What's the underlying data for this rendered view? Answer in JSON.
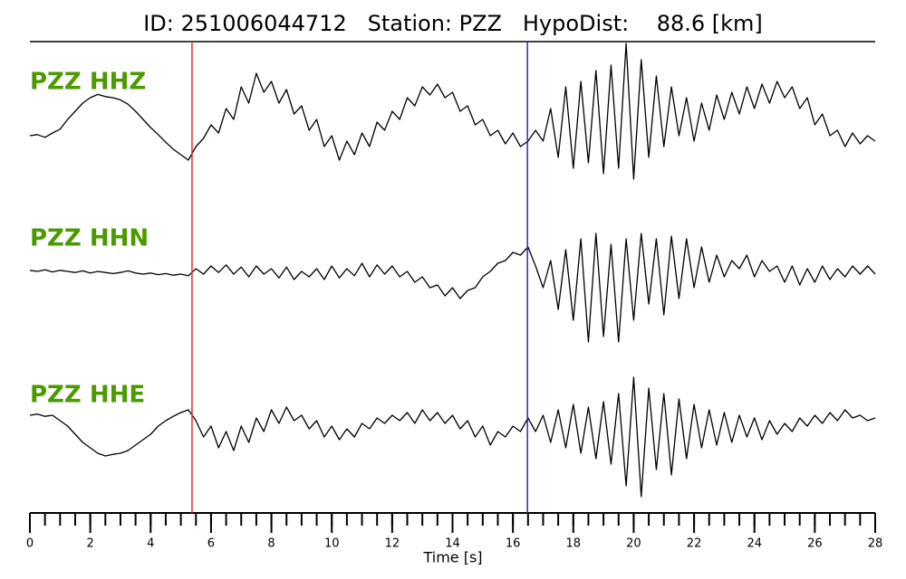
{
  "chart_data": {
    "type": "line",
    "title": "ID: 251006044712   Station: PZZ   HypoDist:    88.6 [km]",
    "x_label": "Time [s]",
    "xlim": [
      0,
      28
    ],
    "xticks": [
      0,
      2,
      4,
      6,
      8,
      10,
      12,
      14,
      16,
      18,
      20,
      22,
      24,
      26,
      28
    ],
    "xminorticks": [
      0,
      0.5,
      1,
      1.5,
      2,
      2.5,
      3,
      3.5,
      4,
      4.5,
      5,
      5.5,
      6,
      6.5,
      7,
      7.5,
      8,
      8.5,
      9,
      9.5,
      10,
      10.5,
      11,
      11.5,
      12,
      12.5,
      13,
      13.5,
      14,
      14.5,
      15,
      15.5,
      16,
      16.5,
      17,
      17.5,
      18,
      18.5,
      19,
      19.5,
      20,
      20.5,
      21,
      21.5,
      22,
      22.5,
      23,
      23.5,
      24,
      24.5,
      25,
      25.5,
      26,
      26.5,
      27,
      27.5,
      28
    ],
    "picks": [
      {
        "time": 5.37,
        "color": "#e03030"
      },
      {
        "time": 16.48,
        "color": "#2030c0"
      }
    ],
    "x": [
      0,
      0.25,
      0.5,
      0.75,
      1,
      1.25,
      1.5,
      1.75,
      2,
      2.25,
      2.5,
      2.75,
      3,
      3.25,
      3.5,
      3.75,
      4,
      4.25,
      4.5,
      4.75,
      5,
      5.25,
      5.5,
      5.75,
      6,
      6.25,
      6.5,
      6.75,
      7,
      7.25,
      7.5,
      7.75,
      8,
      8.25,
      8.5,
      8.75,
      9,
      9.25,
      9.5,
      9.75,
      10,
      10.25,
      10.5,
      10.75,
      11,
      11.25,
      11.5,
      11.75,
      12,
      12.25,
      12.5,
      12.75,
      13,
      13.25,
      13.5,
      13.75,
      14,
      14.25,
      14.5,
      14.75,
      15,
      15.25,
      15.5,
      15.75,
      16,
      16.25,
      16.5,
      16.75,
      17,
      17.25,
      17.5,
      17.75,
      18,
      18.25,
      18.5,
      18.75,
      19,
      19.25,
      19.5,
      19.75,
      20,
      20.25,
      20.5,
      20.75,
      21,
      21.25,
      21.5,
      21.75,
      22,
      22.25,
      22.5,
      22.75,
      23,
      23.25,
      23.5,
      23.75,
      24,
      24.25,
      24.5,
      24.75,
      25,
      25.25,
      25.5,
      25.75,
      26,
      26.25,
      26.5,
      26.75,
      27,
      27.25,
      27.5,
      27.75,
      28
    ],
    "series": [
      {
        "name": "PZZ HHZ",
        "color": "#000000",
        "values": [
          0.0,
          0.02,
          -0.03,
          0.05,
          0.12,
          0.3,
          0.45,
          0.6,
          0.7,
          0.76,
          0.72,
          0.7,
          0.66,
          0.58,
          0.45,
          0.3,
          0.15,
          0.02,
          -0.12,
          -0.25,
          -0.35,
          -0.45,
          -0.2,
          -0.05,
          0.2,
          0.05,
          0.5,
          0.3,
          0.9,
          0.6,
          1.15,
          0.8,
          1.0,
          0.6,
          0.85,
          0.4,
          0.55,
          0.1,
          0.3,
          -0.2,
          0.0,
          -0.45,
          -0.1,
          -0.35,
          0.05,
          -0.2,
          0.25,
          0.1,
          0.45,
          0.3,
          0.7,
          0.55,
          0.9,
          0.75,
          0.95,
          0.7,
          0.8,
          0.45,
          0.55,
          0.2,
          0.3,
          0.0,
          0.1,
          -0.15,
          0.05,
          -0.2,
          -0.1,
          0.1,
          -0.1,
          0.5,
          -0.4,
          0.9,
          -0.6,
          1.0,
          -0.5,
          1.2,
          -0.7,
          1.3,
          -0.6,
          1.7,
          -0.8,
          1.4,
          -0.4,
          1.1,
          -0.2,
          0.9,
          0.0,
          0.7,
          -0.1,
          0.6,
          0.1,
          0.75,
          0.3,
          0.8,
          0.4,
          0.9,
          0.5,
          0.95,
          0.6,
          1.0,
          0.7,
          0.9,
          0.5,
          0.7,
          0.2,
          0.4,
          0.0,
          0.1,
          -0.2,
          0.05,
          -0.15,
          0.0,
          -0.1
        ]
      },
      {
        "name": "PZZ HHN",
        "color": "#000000",
        "values": [
          0.02,
          0.0,
          0.03,
          -0.01,
          0.02,
          0.0,
          -0.02,
          0.01,
          -0.03,
          0.0,
          -0.02,
          -0.04,
          -0.02,
          0.01,
          -0.03,
          -0.05,
          -0.03,
          -0.06,
          -0.04,
          -0.07,
          -0.05,
          -0.08,
          0.05,
          -0.05,
          0.1,
          -0.02,
          0.12,
          -0.05,
          0.08,
          -0.1,
          0.1,
          -0.05,
          0.05,
          -0.12,
          0.08,
          -0.15,
          0.0,
          -0.1,
          0.05,
          -0.15,
          0.1,
          -0.12,
          0.05,
          -0.08,
          0.15,
          -0.1,
          0.12,
          -0.05,
          0.1,
          -0.1,
          0.0,
          -0.2,
          -0.1,
          -0.3,
          -0.25,
          -0.45,
          -0.3,
          -0.5,
          -0.35,
          -0.3,
          -0.1,
          0.0,
          0.15,
          0.2,
          0.35,
          0.3,
          0.45,
          0.1,
          -0.3,
          0.2,
          -0.7,
          0.4,
          -0.9,
          0.6,
          -1.3,
          0.7,
          -1.2,
          0.5,
          -1.3,
          0.6,
          -0.9,
          0.7,
          -0.6,
          0.6,
          -0.8,
          0.65,
          -0.5,
          0.6,
          -0.3,
          0.45,
          -0.2,
          0.3,
          -0.1,
          0.2,
          0.05,
          0.3,
          -0.1,
          0.2,
          0.0,
          0.1,
          -0.2,
          0.1,
          -0.25,
          0.05,
          -0.2,
          0.1,
          -0.15,
          0.05,
          -0.1,
          0.1,
          -0.05,
          0.1,
          -0.05
        ]
      },
      {
        "name": "PZZ HHE",
        "color": "#000000",
        "values": [
          0.1,
          0.12,
          0.08,
          0.1,
          0.0,
          -0.1,
          -0.25,
          -0.4,
          -0.5,
          -0.6,
          -0.65,
          -0.62,
          -0.6,
          -0.55,
          -0.45,
          -0.35,
          -0.25,
          -0.1,
          0.0,
          0.08,
          0.15,
          0.2,
          0.0,
          -0.3,
          -0.1,
          -0.5,
          -0.2,
          -0.55,
          -0.1,
          -0.4,
          0.05,
          -0.2,
          0.2,
          -0.05,
          0.25,
          0.0,
          0.1,
          -0.15,
          0.0,
          -0.3,
          -0.1,
          -0.35,
          -0.15,
          -0.3,
          -0.05,
          -0.15,
          0.05,
          -0.05,
          0.1,
          0.0,
          0.15,
          -0.05,
          0.2,
          0.0,
          0.15,
          -0.05,
          0.1,
          -0.15,
          0.0,
          -0.3,
          -0.1,
          -0.45,
          -0.2,
          -0.3,
          -0.1,
          -0.2,
          0.05,
          -0.2,
          0.1,
          -0.4,
          0.2,
          -0.5,
          0.3,
          -0.6,
          0.25,
          -0.7,
          0.35,
          -0.8,
          0.5,
          -1.2,
          0.8,
          -1.4,
          0.6,
          -0.9,
          0.5,
          -1.0,
          0.4,
          -0.7,
          0.3,
          -0.5,
          0.2,
          -0.45,
          0.15,
          -0.4,
          0.1,
          -0.3,
          0.05,
          -0.35,
          0.0,
          -0.25,
          -0.05,
          -0.2,
          0.05,
          -0.1,
          0.1,
          -0.05,
          0.15,
          0.0,
          0.2,
          0.05,
          0.1,
          0.0,
          0.05
        ]
      }
    ]
  }
}
